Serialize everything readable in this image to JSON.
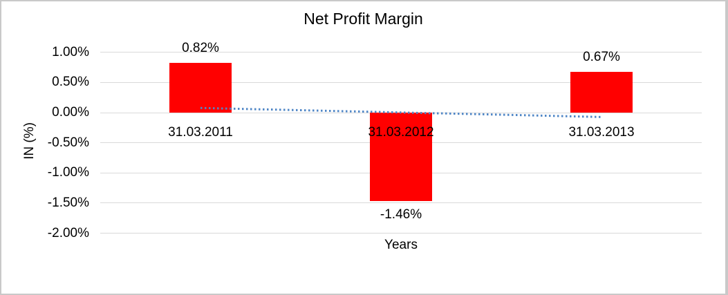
{
  "chart_data": {
    "type": "bar",
    "title": "Net Profit Margin",
    "xlabel": "Years",
    "ylabel": "IN (%)",
    "categories": [
      "31.03.2011",
      "31.03.2012",
      "31.03.2013"
    ],
    "series": [
      {
        "name": "Net Profit Margin",
        "values": [
          0.82,
          -1.46,
          0.67
        ]
      }
    ],
    "value_labels": [
      "0.82%",
      "-1.46%",
      "0.67%"
    ],
    "yticks": [
      1.0,
      0.5,
      0.0,
      -0.5,
      -1.0,
      -1.5,
      -2.0
    ],
    "ytick_labels": [
      "1.00%",
      "0.50%",
      "0.00%",
      "-0.50%",
      "-1.00%",
      "-1.50%",
      "-2.00%"
    ],
    "ylim": [
      -2.25,
      1.25
    ],
    "grid": "horizontal",
    "legend": "none",
    "bar_color": "#ff0000",
    "gridline_color": "#d9d9d9",
    "text_color": "#000000",
    "canvas_border_color": "#c9c9c9",
    "trendline": {
      "type": "linear",
      "style": "dotted",
      "color": "#4f86c6",
      "start_value": 0.085,
      "end_value": -0.065
    }
  }
}
